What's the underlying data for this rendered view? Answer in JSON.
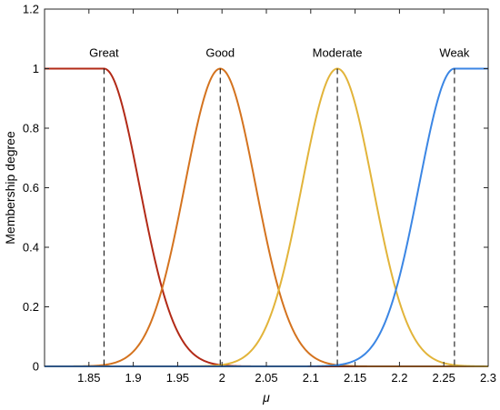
{
  "chart_data": {
    "type": "line",
    "title": "",
    "xlabel": "μ",
    "ylabel": "Membership degree",
    "xlim": [
      1.8,
      2.3
    ],
    "ylim": [
      0,
      1.2
    ],
    "xticks": [
      1.85,
      1.9,
      1.95,
      2.0,
      2.05,
      2.1,
      2.15,
      2.2,
      2.25,
      2.3
    ],
    "xtick_labels": [
      "1.85",
      "1.9",
      "1.95",
      "2",
      "2.05",
      "2.1",
      "2.15",
      "2.2",
      "2.25",
      "2.3"
    ],
    "yticks": [
      0,
      0.2,
      0.4,
      0.6,
      0.8,
      1.0,
      1.2
    ],
    "ytick_labels": [
      "0",
      "0.2",
      "0.4",
      "0.6",
      "0.8",
      "1",
      "1.2"
    ],
    "grid": false,
    "legend": "none",
    "series": [
      {
        "name": "Great",
        "shape": "z-shaped",
        "plateau_until": 1.867,
        "sigma": 0.04,
        "peak_x": 1.867,
        "color": "#B22A17"
      },
      {
        "name": "Good",
        "shape": "gaussian",
        "center": 1.998,
        "sigma": 0.04,
        "peak_x": 1.998,
        "color": "#D4731F"
      },
      {
        "name": "Moderate",
        "shape": "gaussian",
        "center": 2.13,
        "sigma": 0.04,
        "peak_x": 2.13,
        "color": "#E2B43A"
      },
      {
        "name": "Weak",
        "shape": "s-shaped",
        "plateau_from": 2.262,
        "sigma": 0.04,
        "peak_x": 2.262,
        "color": "#3B86E4"
      }
    ]
  }
}
